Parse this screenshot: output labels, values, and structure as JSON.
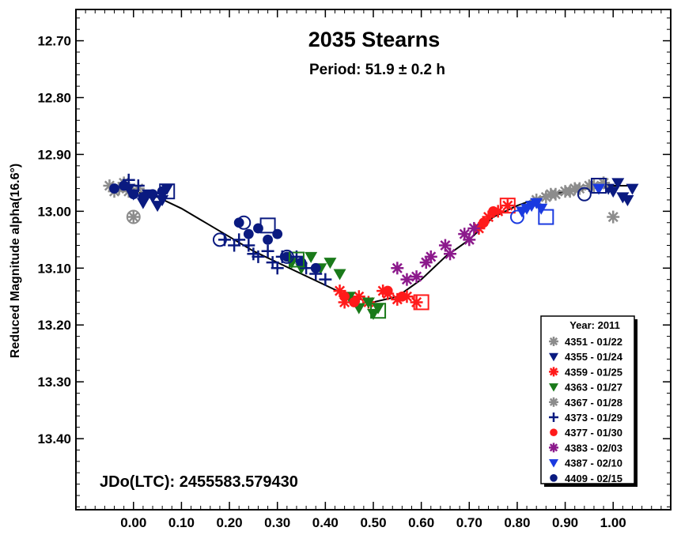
{
  "chart_data": {
    "type": "scatter",
    "title": "2035 Stearns",
    "subtitle": "Period: 51.9 ± 0.2 h",
    "xlabel": "",
    "ylabel": "Reduced Magnitude alpha(16.6°)",
    "annotation": "JDo(LTC): 2455583.579430",
    "xlim": [
      -0.12,
      1.12
    ],
    "ylim": [
      12.645,
      13.525
    ],
    "y_inverted": true,
    "grid": false,
    "legend_position": "bottom-right",
    "x_ticks": [
      "0.00",
      "0.10",
      "0.20",
      "0.30",
      "0.40",
      "0.50",
      "0.60",
      "0.70",
      "0.80",
      "0.90",
      "1.00"
    ],
    "y_ticks": [
      "12.70",
      "12.80",
      "12.90",
      "13.00",
      "13.10",
      "13.20",
      "13.30",
      "13.40"
    ],
    "legend_title": "Year: 2011",
    "series": [
      {
        "name": "4351 - 01/22",
        "marker": "asterisk",
        "color": "#8c8c8c",
        "points": [
          [
            -0.05,
            12.955
          ],
          [
            -0.04,
            12.965
          ],
          [
            -0.03,
            12.96
          ],
          [
            -0.02,
            12.95
          ],
          [
            -0.01,
            12.965
          ],
          [
            0.0,
            13.01
          ],
          [
            0.01,
            12.96
          ],
          [
            0.86,
            12.975
          ],
          [
            0.88,
            12.97
          ],
          [
            0.9,
            12.965
          ],
          [
            0.92,
            12.96
          ],
          [
            0.95,
            12.955
          ],
          [
            0.98,
            12.95
          ],
          [
            1.0,
            13.01
          ]
        ]
      },
      {
        "name": "4355 - 01/24",
        "marker": "triangle-down",
        "color": "#0a1a80",
        "points": [
          [
            -0.01,
            12.96
          ],
          [
            0.0,
            12.97
          ],
          [
            0.02,
            12.985
          ],
          [
            0.03,
            12.97
          ],
          [
            0.04,
            12.975
          ],
          [
            0.05,
            12.99
          ],
          [
            0.06,
            12.98
          ],
          [
            0.07,
            12.96
          ],
          [
            0.99,
            12.96
          ],
          [
            1.0,
            12.965
          ],
          [
            1.01,
            12.95
          ],
          [
            1.02,
            12.975
          ],
          [
            1.03,
            12.98
          ],
          [
            1.04,
            12.96
          ]
        ]
      },
      {
        "name": "4359 - 01/25",
        "marker": "asterisk",
        "color": "#ff1a1a",
        "points": [
          [
            0.43,
            13.14
          ],
          [
            0.44,
            13.16
          ],
          [
            0.47,
            13.15
          ],
          [
            0.49,
            13.16
          ],
          [
            0.52,
            13.14
          ],
          [
            0.53,
            13.145
          ],
          [
            0.55,
            13.155
          ],
          [
            0.57,
            13.15
          ],
          [
            0.59,
            13.16
          ],
          [
            0.72,
            13.03
          ],
          [
            0.74,
            13.01
          ],
          [
            0.76,
            13.0
          ],
          [
            0.78,
            12.99
          ]
        ]
      },
      {
        "name": "4363 - 01/27",
        "marker": "triangle-down",
        "color": "#1a7a1a",
        "points": [
          [
            0.33,
            13.09
          ],
          [
            0.35,
            13.1
          ],
          [
            0.37,
            13.08
          ],
          [
            0.39,
            13.1
          ],
          [
            0.41,
            13.09
          ],
          [
            0.43,
            13.11
          ],
          [
            0.45,
            13.15
          ],
          [
            0.47,
            13.17
          ],
          [
            0.49,
            13.16
          ],
          [
            0.5,
            13.18
          ],
          [
            0.51,
            13.17
          ]
        ]
      },
      {
        "name": "4367 - 01/28",
        "marker": "asterisk",
        "color": "#8c8c8c",
        "points": [
          [
            0.84,
            12.98
          ],
          [
            0.87,
            12.97
          ],
          [
            0.91,
            12.965
          ],
          [
            0.93,
            12.96
          ],
          [
            0.96,
            12.955
          ],
          [
            0.98,
            12.95
          ]
        ]
      },
      {
        "name": "4373 - 01/29",
        "marker": "plus",
        "color": "#0a1a80",
        "points": [
          [
            -0.01,
            12.945
          ],
          [
            0.01,
            12.955
          ],
          [
            0.19,
            13.05
          ],
          [
            0.21,
            13.06
          ],
          [
            0.22,
            13.05
          ],
          [
            0.24,
            13.06
          ],
          [
            0.25,
            13.075
          ],
          [
            0.26,
            13.08
          ],
          [
            0.28,
            13.07
          ],
          [
            0.29,
            13.09
          ],
          [
            0.3,
            13.1
          ],
          [
            0.31,
            13.08
          ],
          [
            0.34,
            13.08
          ],
          [
            0.36,
            13.1
          ],
          [
            0.38,
            13.11
          ],
          [
            0.4,
            13.12
          ]
        ]
      },
      {
        "name": "4377 - 01/30",
        "marker": "dot",
        "color": "#ff1a1a",
        "points": [
          [
            0.44,
            13.15
          ],
          [
            0.46,
            13.16
          ],
          [
            0.53,
            13.14
          ],
          [
            0.56,
            13.15
          ],
          [
            0.73,
            13.02
          ],
          [
            0.75,
            13.0
          ]
        ]
      },
      {
        "name": "4383 - 02/03",
        "marker": "asterisk",
        "color": "#8c1a8c",
        "points": [
          [
            0.55,
            13.1
          ],
          [
            0.57,
            13.12
          ],
          [
            0.59,
            13.115
          ],
          [
            0.61,
            13.09
          ],
          [
            0.62,
            13.08
          ],
          [
            0.65,
            13.06
          ],
          [
            0.66,
            13.075
          ],
          [
            0.69,
            13.04
          ],
          [
            0.7,
            13.05
          ],
          [
            0.71,
            13.03
          ]
        ]
      },
      {
        "name": "4387 - 02/10",
        "marker": "triangle-down",
        "color": "#1a3ae0",
        "points": [
          [
            0.81,
            13.0
          ],
          [
            0.82,
            12.995
          ],
          [
            0.83,
            12.99
          ],
          [
            0.84,
            12.985
          ],
          [
            0.85,
            12.995
          ],
          [
            0.97,
            12.96
          ]
        ]
      },
      {
        "name": "4409 - 02/15",
        "marker": "dot",
        "color": "#0a1a80",
        "points": [
          [
            -0.04,
            12.96
          ],
          [
            -0.02,
            12.955
          ],
          [
            0.0,
            12.97
          ],
          [
            0.02,
            12.975
          ],
          [
            0.04,
            12.97
          ],
          [
            0.06,
            12.965
          ],
          [
            0.22,
            13.02
          ],
          [
            0.24,
            13.04
          ],
          [
            0.26,
            13.03
          ],
          [
            0.28,
            13.05
          ],
          [
            0.3,
            13.04
          ],
          [
            0.32,
            13.08
          ],
          [
            0.35,
            13.09
          ],
          [
            0.38,
            13.1
          ]
        ]
      }
    ],
    "open_markers": [
      {
        "shape": "square",
        "color": "#0a1a80",
        "x": 0.07,
        "y": 12.965
      },
      {
        "shape": "square",
        "color": "#0a1a80",
        "x": 0.28,
        "y": 13.025
      },
      {
        "shape": "square",
        "color": "#1a7a1a",
        "x": 0.34,
        "y": 13.085
      },
      {
        "shape": "square",
        "color": "#1a7a1a",
        "x": 0.51,
        "y": 13.175
      },
      {
        "shape": "square",
        "color": "#ff1a1a",
        "x": 0.6,
        "y": 13.16
      },
      {
        "shape": "square",
        "color": "#ff1a1a",
        "x": 0.78,
        "y": 12.99
      },
      {
        "shape": "square",
        "color": "#1a3ae0",
        "x": 0.86,
        "y": 13.01
      },
      {
        "shape": "square",
        "color": "#0a1a80",
        "x": 0.97,
        "y": 12.955
      },
      {
        "shape": "circle",
        "color": "#8c8c8c",
        "x": 0.0,
        "y": 13.01
      },
      {
        "shape": "circle",
        "color": "#0a1a80",
        "x": 0.18,
        "y": 13.05
      },
      {
        "shape": "circle",
        "color": "#0a1a80",
        "x": 0.23,
        "y": 13.02
      },
      {
        "shape": "circle",
        "color": "#0a1a80",
        "x": 0.32,
        "y": 13.08
      },
      {
        "shape": "circle",
        "color": "#1a3ae0",
        "x": 0.8,
        "y": 13.01
      },
      {
        "shape": "circle",
        "color": "#0a1a80",
        "x": 0.94,
        "y": 12.97
      }
    ],
    "fit_curve": [
      [
        -0.04,
        12.96
      ],
      [
        0.0,
        12.965
      ],
      [
        0.05,
        12.975
      ],
      [
        0.1,
        12.995
      ],
      [
        0.15,
        13.02
      ],
      [
        0.2,
        13.045
      ],
      [
        0.25,
        13.07
      ],
      [
        0.3,
        13.09
      ],
      [
        0.35,
        13.11
      ],
      [
        0.4,
        13.13
      ],
      [
        0.45,
        13.15
      ],
      [
        0.5,
        13.16
      ],
      [
        0.55,
        13.15
      ],
      [
        0.6,
        13.12
      ],
      [
        0.65,
        13.08
      ],
      [
        0.7,
        13.05
      ],
      [
        0.75,
        13.01
      ],
      [
        0.8,
        12.99
      ],
      [
        0.85,
        12.975
      ],
      [
        0.9,
        12.965
      ],
      [
        0.95,
        12.96
      ],
      [
        1.0,
        12.955
      ],
      [
        1.04,
        12.955
      ]
    ]
  }
}
